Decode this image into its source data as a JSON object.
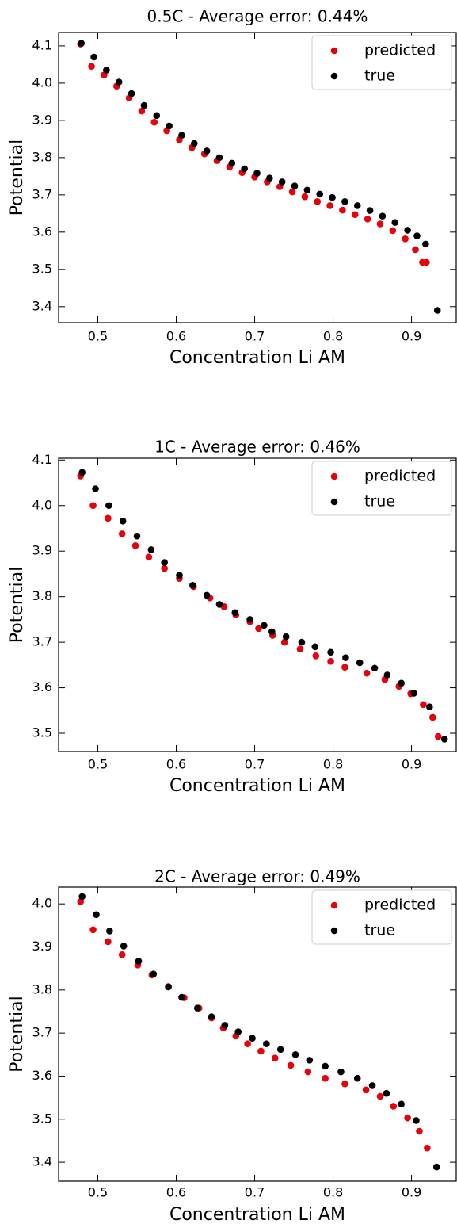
{
  "chart_data": [
    {
      "type": "scatter",
      "title": "0.5C - Average error: 0.44%",
      "xlabel": "Concentration Li AM",
      "ylabel": "Potential",
      "xlim": [
        0.45,
        0.957
      ],
      "ylim": [
        3.357,
        4.136
      ],
      "xticks": [
        0.5,
        0.6,
        0.7,
        0.8,
        0.9
      ],
      "yticks": [
        3.4,
        3.5,
        3.6,
        3.7,
        3.8,
        3.9,
        {
          "value": 4,
          "label": "4.0"
        },
        4.1
      ],
      "legend": "upper right",
      "series": [
        {
          "name": "predicted",
          "color": "#e8000b",
          "x": [
            0.478,
            0.492,
            0.508,
            0.524,
            0.54,
            0.556,
            0.572,
            0.588,
            0.604,
            0.62,
            0.636,
            0.652,
            0.668,
            0.684,
            0.7,
            0.716,
            0.732,
            0.748,
            0.764,
            0.78,
            0.796,
            0.812,
            0.828,
            0.844,
            0.86,
            0.876,
            0.892,
            0.905,
            0.914,
            0.919
          ],
          "values": [
            4.105,
            4.045,
            4.022,
            3.992,
            3.96,
            3.925,
            3.895,
            3.872,
            3.848,
            3.827,
            3.81,
            3.792,
            3.775,
            3.76,
            3.748,
            3.735,
            3.722,
            3.708,
            3.695,
            3.682,
            3.671,
            3.659,
            3.647,
            3.635,
            3.622,
            3.604,
            3.582,
            3.553,
            3.519,
            3.519
          ]
        },
        {
          "name": "true",
          "color": "#000000",
          "x": [
            0.479,
            0.495,
            0.511,
            0.527,
            0.543,
            0.559,
            0.575,
            0.591,
            0.607,
            0.623,
            0.639,
            0.655,
            0.671,
            0.687,
            0.703,
            0.719,
            0.735,
            0.751,
            0.767,
            0.783,
            0.799,
            0.815,
            0.831,
            0.847,
            0.863,
            0.879,
            0.895,
            0.907,
            0.918,
            0.933
          ],
          "values": [
            4.107,
            4.07,
            4.035,
            4.003,
            3.972,
            3.94,
            3.913,
            3.885,
            3.86,
            3.838,
            3.818,
            3.8,
            3.785,
            3.77,
            3.758,
            3.745,
            3.735,
            3.724,
            3.713,
            3.702,
            3.693,
            3.682,
            3.671,
            3.658,
            3.643,
            3.626,
            3.605,
            3.59,
            3.568,
            3.39
          ]
        }
      ]
    },
    {
      "type": "scatter",
      "title": "1C - Average error: 0.46%",
      "xlabel": "Concentration Li AM",
      "ylabel": "Potential",
      "xlim": [
        0.45,
        0.957
      ],
      "ylim": [
        3.46,
        4.104
      ],
      "xticks": [
        0.5,
        0.6,
        0.7,
        0.8,
        0.9
      ],
      "yticks": [
        3.5,
        3.6,
        3.7,
        3.8,
        3.9,
        {
          "value": 4,
          "label": "4.0"
        },
        4.1
      ],
      "legend": "upper right",
      "series": [
        {
          "name": "predicted",
          "color": "#e8000b",
          "x": [
            0.478,
            0.494,
            0.513,
            0.531,
            0.548,
            0.565,
            0.585,
            0.604,
            0.622,
            0.643,
            0.661,
            0.676,
            0.694,
            0.705,
            0.723,
            0.738,
            0.758,
            0.778,
            0.797,
            0.815,
            0.843,
            0.866,
            0.884,
            0.899,
            0.915,
            0.927,
            0.934
          ],
          "values": [
            4.065,
            4.0,
            3.972,
            3.938,
            3.912,
            3.887,
            3.862,
            3.84,
            3.822,
            3.797,
            3.778,
            3.76,
            3.745,
            3.73,
            3.715,
            3.7,
            3.685,
            3.67,
            3.658,
            3.645,
            3.632,
            3.618,
            3.603,
            3.587,
            3.563,
            3.535,
            3.493
          ]
        },
        {
          "name": "true",
          "color": "#000000",
          "x": [
            0.48,
            0.497,
            0.514,
            0.532,
            0.55,
            0.568,
            0.585,
            0.604,
            0.621,
            0.639,
            0.655,
            0.675,
            0.694,
            0.712,
            0.722,
            0.74,
            0.76,
            0.777,
            0.797,
            0.816,
            0.834,
            0.853,
            0.869,
            0.887,
            0.903,
            0.923,
            0.942
          ],
          "values": [
            4.073,
            4.037,
            4.0,
            3.966,
            3.933,
            3.903,
            3.875,
            3.847,
            3.825,
            3.803,
            3.783,
            3.765,
            3.75,
            3.737,
            3.723,
            3.712,
            3.7,
            3.69,
            3.678,
            3.666,
            3.655,
            3.643,
            3.628,
            3.61,
            3.588,
            3.558,
            3.487
          ]
        }
      ]
    },
    {
      "type": "scatter",
      "title": "2C - Average error: 0.49%",
      "xlabel": "Concentration Li AM",
      "ylabel": "Potential",
      "xlim": [
        0.45,
        0.957
      ],
      "ylim": [
        3.356,
        4.039
      ],
      "xticks": [
        0.5,
        0.6,
        0.7,
        0.8,
        0.9
      ],
      "yticks": [
        3.4,
        3.5,
        3.6,
        3.7,
        3.8,
        3.9,
        {
          "value": 4,
          "label": "4.0"
        }
      ],
      "legend": "upper right",
      "series": [
        {
          "name": "predicted",
          "color": "#e8000b",
          "x": [
            0.478,
            0.494,
            0.513,
            0.531,
            0.551,
            0.569,
            0.59,
            0.61,
            0.629,
            0.645,
            0.66,
            0.676,
            0.691,
            0.708,
            0.726,
            0.746,
            0.768,
            0.79,
            0.815,
            0.842,
            0.86,
            0.877,
            0.895,
            0.91,
            0.92
          ],
          "values": [
            4.005,
            3.94,
            3.912,
            3.882,
            3.858,
            3.835,
            3.808,
            3.782,
            3.758,
            3.735,
            3.712,
            3.693,
            3.675,
            3.658,
            3.642,
            3.625,
            3.61,
            3.595,
            3.582,
            3.568,
            3.553,
            3.53,
            3.503,
            3.472,
            3.433
          ]
        },
        {
          "name": "true",
          "color": "#000000",
          "x": [
            0.48,
            0.498,
            0.515,
            0.533,
            0.552,
            0.571,
            0.59,
            0.607,
            0.627,
            0.645,
            0.662,
            0.679,
            0.697,
            0.715,
            0.733,
            0.752,
            0.77,
            0.79,
            0.81,
            0.831,
            0.85,
            0.868,
            0.887,
            0.906,
            0.932
          ],
          "values": [
            4.017,
            3.975,
            3.937,
            3.902,
            3.867,
            3.837,
            3.807,
            3.783,
            3.758,
            3.738,
            3.718,
            3.703,
            3.688,
            3.675,
            3.662,
            3.65,
            3.637,
            3.623,
            3.61,
            3.595,
            3.578,
            3.56,
            3.535,
            3.497,
            3.389
          ]
        }
      ]
    }
  ]
}
